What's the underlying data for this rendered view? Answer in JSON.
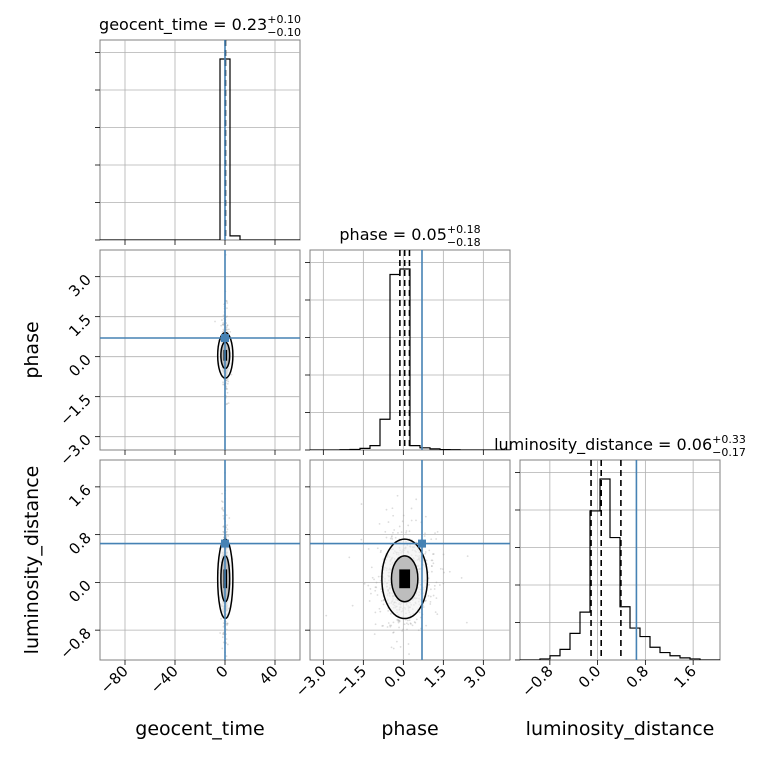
{
  "chart_data": {
    "type": "corner",
    "parameters": [
      "geocent_time",
      "phase",
      "luminosity_distance"
    ],
    "axis_labels": {
      "geocent_time": "geocent_time",
      "phase": "phase",
      "luminosity_distance": "luminosity_distance"
    },
    "ranges": {
      "geocent_time": [
        -100,
        60
      ],
      "phase": [
        -3.5,
        4.0
      ],
      "luminosity_distance": [
        -1.3,
        2.05
      ]
    },
    "ticks": {
      "geocent_time": [
        -80,
        -40,
        0,
        40
      ],
      "phase": [
        -3.0,
        -1.5,
        0.0,
        1.5,
        3.0
      ],
      "luminosity_distance": [
        -0.8,
        0.0,
        0.8,
        1.6
      ]
    },
    "tick_labels": {
      "geocent_time": [
        "−80",
        "−40",
        "0",
        "40"
      ],
      "phase": [
        "−3.0",
        "−1.5",
        "0.0",
        "1.5",
        "3.0"
      ],
      "luminosity_distance": [
        "−0.8",
        "0.0",
        "0.8",
        "1.6"
      ]
    },
    "truths": {
      "geocent_time": 0,
      "phase": 0.7,
      "luminosity_distance": 0.65
    },
    "titles": {
      "geocent_time": {
        "label": "geocent_time = 0.23",
        "plus": "+0.10",
        "minus": "−0.10"
      },
      "phase": {
        "label": "phase = 0.05",
        "plus": "+0.18",
        "minus": "−0.18"
      },
      "luminosity_distance": {
        "label": "luminosity_distance = 0.06",
        "plus": "+0.33",
        "minus": "−0.17"
      }
    },
    "quantiles": {
      "geocent_time": [
        0.13,
        0.23,
        0.33
      ],
      "phase": [
        -0.13,
        0.05,
        0.23
      ],
      "luminosity_distance": [
        -0.11,
        0.06,
        0.39
      ]
    },
    "histograms": {
      "geocent_time": {
        "edges": [
          -100,
          -92,
          -84,
          -76,
          -68,
          -60,
          -52,
          -44,
          -36,
          -28,
          -20,
          -12,
          -4,
          4,
          12,
          20,
          28,
          36,
          44,
          52,
          60
        ],
        "counts": [
          0,
          0,
          0,
          0,
          0,
          0,
          0,
          0,
          0,
          0,
          0,
          0,
          2400,
          55,
          0,
          0,
          0,
          0,
          0,
          0
        ]
      },
      "phase": {
        "edges": [
          -3.5,
          -3.125,
          -2.75,
          -2.375,
          -2.0,
          -1.625,
          -1.25,
          -0.875,
          -0.5,
          -0.125,
          0.25,
          0.625,
          1.0,
          1.375,
          1.75,
          2.125,
          2.5,
          2.875,
          3.25,
          3.625,
          4.0
        ],
        "counts": [
          0,
          0,
          0,
          2,
          5,
          15,
          40,
          280,
          1600,
          1650,
          40,
          20,
          10,
          4,
          2,
          0,
          0,
          0,
          0,
          0
        ]
      },
      "luminosity_distance": {
        "edges": [
          -1.3,
          -1.1325,
          -0.965,
          -0.7975,
          -0.63,
          -0.4625,
          -0.295,
          -0.1275,
          0.04,
          0.2075,
          0.375,
          0.5425,
          0.71,
          0.8775,
          1.045,
          1.2125,
          1.38,
          1.5475,
          1.715,
          1.8825,
          2.05
        ],
        "counts": [
          0,
          0,
          1,
          4,
          10,
          25,
          45,
          140,
          170,
          115,
          50,
          30,
          22,
          12,
          7,
          4,
          2,
          1,
          0,
          0
        ]
      }
    },
    "grid": true,
    "colors": {
      "truth": "#4682b4",
      "hist": "#000000",
      "contour": "#000000",
      "sample": "#9a9a9a",
      "frame": "#808080",
      "grid": "#b0b0b0"
    }
  }
}
